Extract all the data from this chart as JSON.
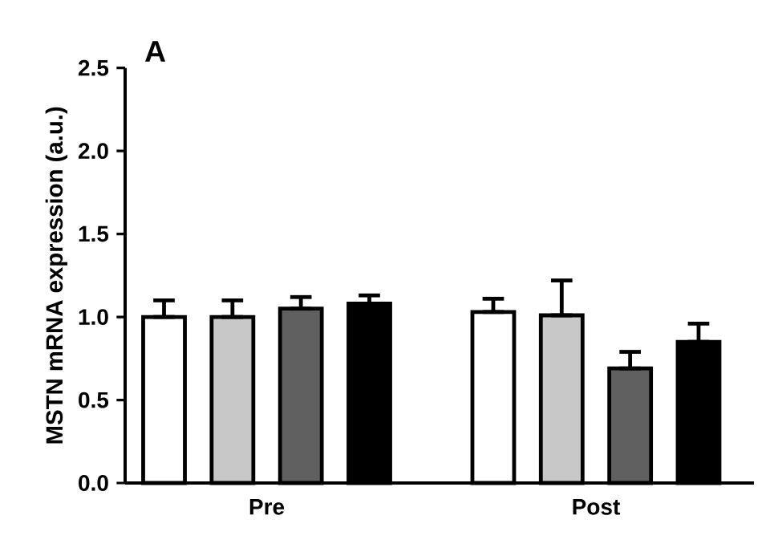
{
  "chart_data": {
    "type": "bar",
    "title": "A",
    "ylabel": "MSTN mRNA expression (a.u.)",
    "categories": [
      "Pre",
      "Post"
    ],
    "series": [
      {
        "color": "#ffffff",
        "values": [
          1.0,
          1.03
        ],
        "errors": [
          [
            1.0,
            1.1
          ],
          [
            1.03,
            1.11
          ]
        ]
      },
      {
        "color": "#c8c8c8",
        "values": [
          1.0,
          1.01
        ],
        "errors": [
          [
            1.0,
            1.1
          ],
          [
            1.01,
            1.22
          ]
        ]
      },
      {
        "color": "#606060",
        "values": [
          1.05,
          0.69
        ],
        "errors": [
          [
            1.05,
            1.12
          ],
          [
            0.69,
            0.79
          ]
        ]
      },
      {
        "color": "#000000",
        "values": [
          1.08,
          0.85
        ],
        "errors": [
          [
            1.08,
            1.13
          ],
          [
            0.85,
            0.96
          ]
        ]
      }
    ],
    "ylim": [
      0,
      2.5
    ],
    "yticks": [
      {
        "value": 0,
        "label": "0.0"
      },
      {
        "value": 0.5,
        "label": "0.5"
      },
      {
        "value": 1,
        "label": "1.0"
      },
      {
        "value": 1.5,
        "label": "1.5"
      },
      {
        "value": 2,
        "label": "2.0"
      },
      {
        "value": 2.5,
        "label": "2.5"
      }
    ],
    "grid": false
  }
}
